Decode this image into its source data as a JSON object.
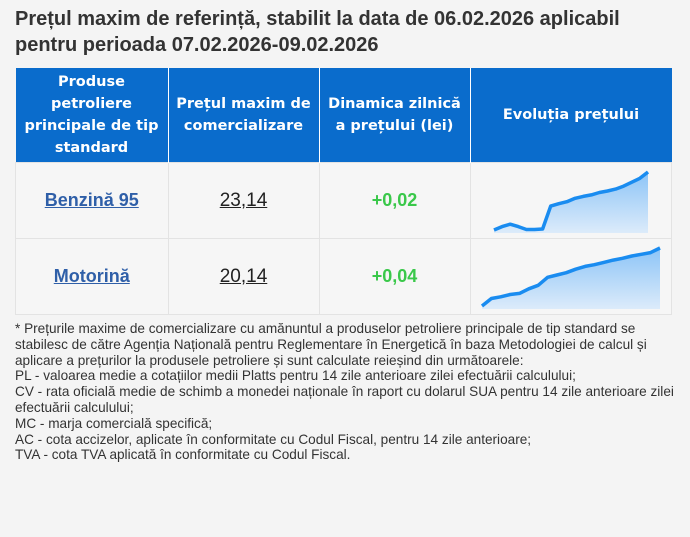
{
  "title": "Prețul maxim de referință, stabilit la data de 06.02.2026 aplicabil pentru perioada 07.02.2026-09.02.2026",
  "table": {
    "headers": [
      "Produse petroliere principale de tip standard",
      "Prețul maxim de comercializare",
      "Dinamica zilnică a prețului (lei)",
      "Evoluția prețului"
    ],
    "rows": [
      {
        "product": "Benzină 95",
        "price": "23,14",
        "change": "+0,02",
        "trend": [
          0.6,
          1.3,
          1.8,
          1.3,
          0.7,
          0.7,
          0.8,
          5.5,
          6.0,
          6.4,
          7.1,
          7.5,
          7.8,
          8.3,
          8.6,
          9.0,
          9.6,
          10.4,
          11.2,
          12.5
        ]
      },
      {
        "product": "Motorină",
        "price": "20,14",
        "change": "+0,04",
        "trend": [
          0.2,
          1.5,
          1.8,
          2.2,
          2.4,
          3.2,
          3.8,
          5.2,
          5.6,
          6.0,
          6.6,
          7.1,
          7.4,
          7.8,
          8.2,
          8.5,
          8.9,
          9.2,
          9.5,
          10.3
        ]
      }
    ]
  },
  "colors": {
    "header": "#0a6ccc",
    "positive": "#3ac84a",
    "line": "#1a8cf0",
    "link": "#2f5fa8"
  },
  "notes": [
    "* Prețurile maxime de comercializare cu amănuntul a produselor petroliere principale de tip standard se stabilesc de către Agenția Națională pentru Reglementare în Energetică în baza Metodologiei de calcul și aplicare a prețurilor la produsele petroliere și sunt calculate reieșind din următoarele:",
    "PL - valoarea medie a cotațiilor medii Platts pentru 14 zile anterioare zilei efectuării calculului;",
    "CV - rata oficială medie de schimb a monedei naționale în raport cu dolarul SUA pentru 14 zile anterioare zilei efectuării calculului;",
    "MC - marja comercială specifică;",
    "AC - cota accizelor, aplicate în conformitate cu Codul Fiscal, pentru 14 zile anterioare;",
    "TVA - cota TVA aplicată în conformitate cu Codul Fiscal."
  ]
}
